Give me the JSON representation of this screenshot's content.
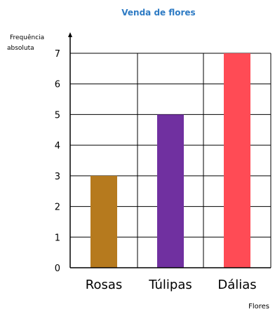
{
  "chart_data": {
    "type": "bar",
    "title": "Venda de flores",
    "ylabel": [
      "Frequência",
      "absoluta"
    ],
    "xlabel": "Flores",
    "categories": [
      "Rosas",
      "Túlipas",
      "Dálias"
    ],
    "values": [
      3,
      5,
      7
    ],
    "ylim": [
      0,
      7
    ],
    "yticks": [
      "0",
      "1",
      "2",
      "3",
      "4",
      "5",
      "6",
      "7"
    ],
    "grid": true,
    "colors": {
      "title": "#2E7BC4",
      "bars": [
        "#B67A1E",
        "#7030A0",
        "#FF4B55"
      ],
      "grid": "#000000",
      "text": "#000000"
    }
  }
}
